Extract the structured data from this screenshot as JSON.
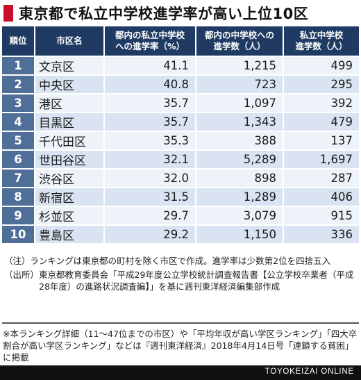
{
  "title": "東京都で私立中学校進学率が高い上位10区",
  "colors": {
    "accent": "#c8102e",
    "header_bg": "#1f3b63",
    "rank_bg": "#4f6f99",
    "row_light": "#eef3fa",
    "row_dark": "#d9e3f1"
  },
  "table": {
    "headers": {
      "rank": "順位",
      "name": "市区名",
      "rate_l1": "都内の私立中学校",
      "rate_l2": "への進学率（%）",
      "count_l1": "都内の中学校への",
      "count_l2": "進学数（人）",
      "private_l1": "私立中学校",
      "private_l2": "進学数（人）"
    },
    "rows": [
      {
        "rank": "1",
        "name": "文京区",
        "rate": "41.1",
        "count": "1,215",
        "private": "499"
      },
      {
        "rank": "2",
        "name": "中央区",
        "rate": "40.8",
        "count": "723",
        "private": "295"
      },
      {
        "rank": "3",
        "name": "港区",
        "rate": "35.7",
        "count": "1,097",
        "private": "392"
      },
      {
        "rank": "4",
        "name": "目黒区",
        "rate": "35.7",
        "count": "1,343",
        "private": "479"
      },
      {
        "rank": "5",
        "name": "千代田区",
        "rate": "35.3",
        "count": "388",
        "private": "137"
      },
      {
        "rank": "6",
        "name": "世田谷区",
        "rate": "32.1",
        "count": "5,289",
        "private": "1,697"
      },
      {
        "rank": "7",
        "name": "渋谷区",
        "rate": "32.0",
        "count": "898",
        "private": "287"
      },
      {
        "rank": "8",
        "name": "新宿区",
        "rate": "31.5",
        "count": "1,289",
        "private": "406"
      },
      {
        "rank": "9",
        "name": "杉並区",
        "rate": "29.7",
        "count": "3,079",
        "private": "915"
      },
      {
        "rank": "10",
        "name": "豊島区",
        "rate": "29.2",
        "count": "1,150",
        "private": "336"
      }
    ]
  },
  "notes": {
    "note_tag": "（注）",
    "note_text": "ランキングは東京都の町村を除く市区で作成。進学率は少数第2位を四捨五入",
    "source_tag": "（出所）",
    "source_text": "東京都教育委員会「平成29年度公立学校統計調査報告書【公立学校卒業者（平成28年度）の進路状況調査編】」を基に週刊東洋経済編集部作成"
  },
  "footer": {
    "text": "※本ランキング詳細（11〜47位までの市区）や「平均年収が高い学区ランキング」「四大卒割合が高い学区ランキング」などは『週刊東洋経済』2018年4月14日号「連鎖する貧困」に掲載"
  },
  "brand": "TOYOKEIZAI ONLINE"
}
